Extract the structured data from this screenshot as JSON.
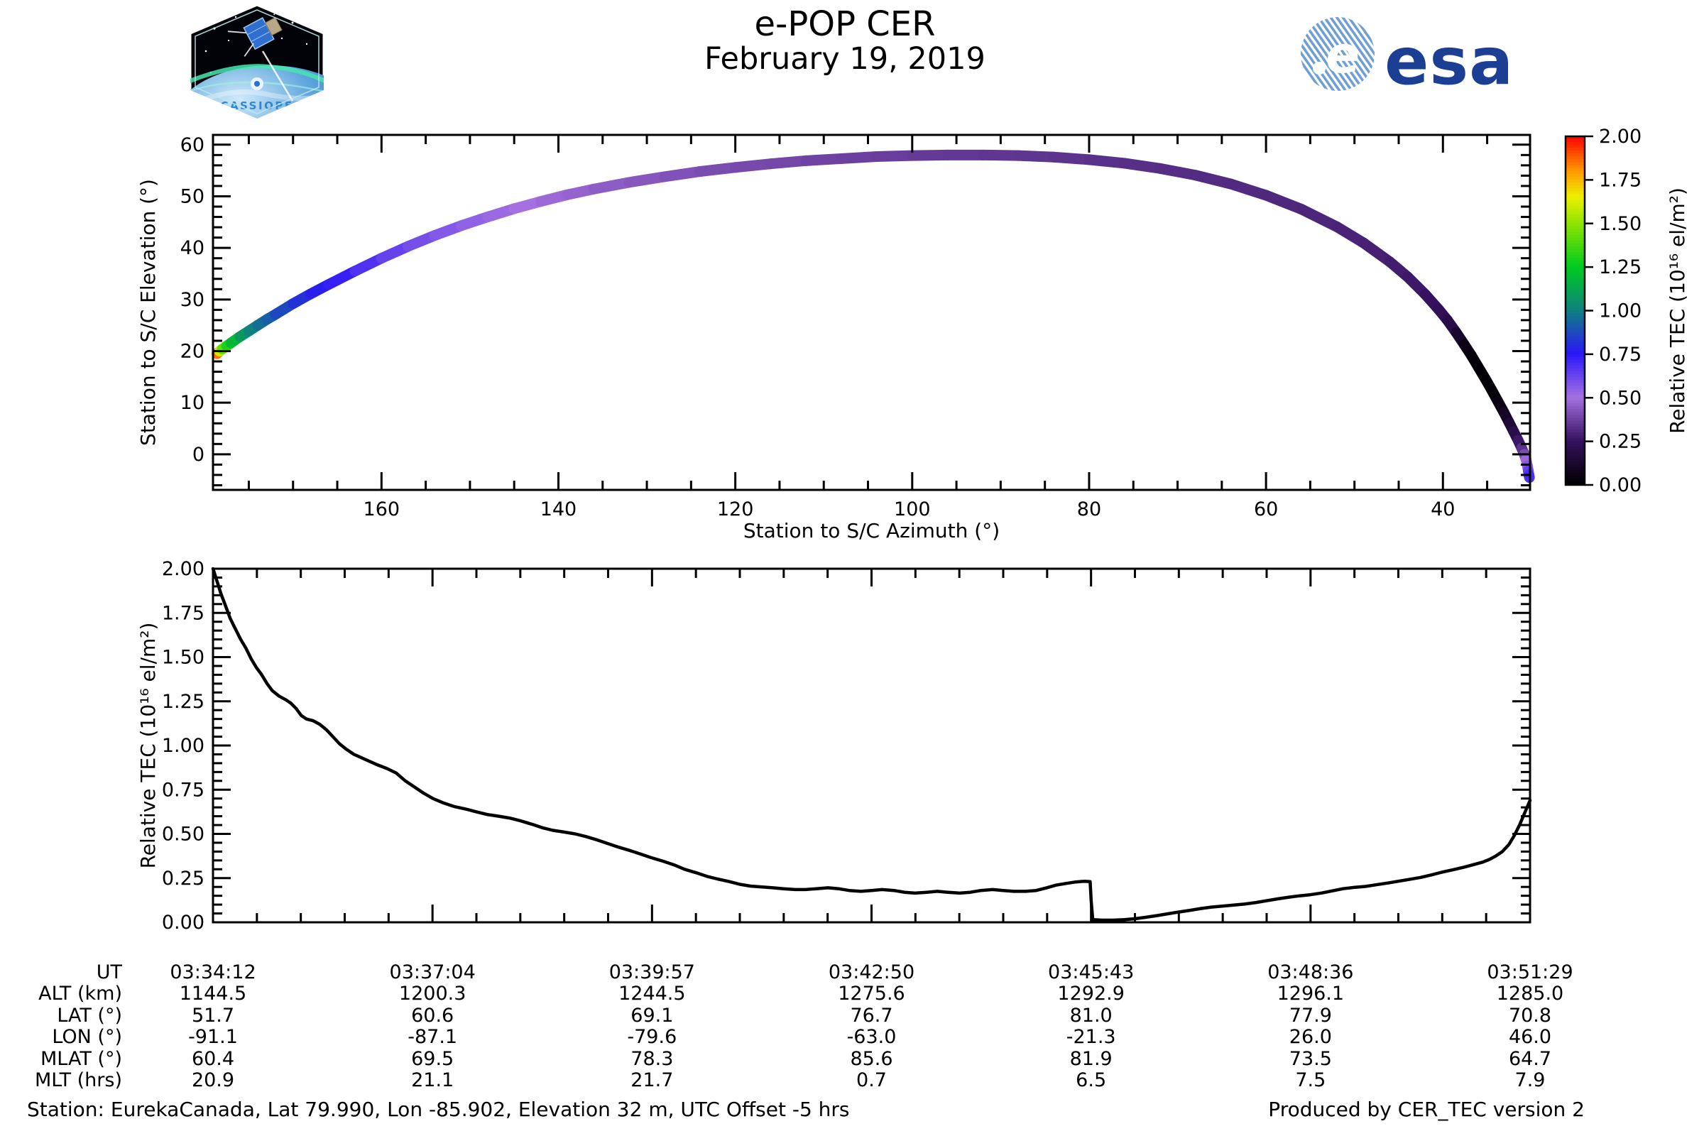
{
  "header": {
    "title": "e-POP CER",
    "date": "February 19, 2019",
    "cassiope_label": "CASSIOPE",
    "esa_wordmark": "esa",
    "esa_e": "e"
  },
  "footer": {
    "station": "Station: EurekaCanada, Lat 79.990, Lon -85.902, Elevation 32 m, UTC Offset -5 hrs",
    "produced": "Produced by CER_TEC version 2"
  },
  "colors": {
    "esa_blue": "#1c3f94",
    "esa_ball_stripe": "#6f9fd2",
    "cassiope_text": "#2f86d6",
    "line": "#000000",
    "background": "#ffffff"
  },
  "chart_data": [
    {
      "id": "elevation-vs-azimuth",
      "type": "line",
      "title": "",
      "xlabel": "Station to S/C Azimuth (°)",
      "ylabel": "Station to S/C Elevation (°)",
      "xlim": [
        179.05,
        30.15
      ],
      "ylim": [
        -6.9,
        61.9
      ],
      "xticks": [
        160,
        140,
        120,
        100,
        80,
        60,
        40
      ],
      "xminor_step": 5,
      "yticks": [
        0,
        10,
        20,
        30,
        40,
        50,
        60
      ],
      "yminor_step": 2,
      "grid": false,
      "legend": "none",
      "colorbar": {
        "label": "Relative TEC (10¹⁶ el/m²)",
        "tick_labels": [
          "2.00",
          "1.75",
          "1.50",
          "1.25",
          "1.00",
          "0.75",
          "0.50",
          "0.25",
          "0.00"
        ],
        "vmin": 0.0,
        "vmax": 2.0
      },
      "colormap_stops": [
        [
          0.0,
          "#000000"
        ],
        [
          0.25,
          "#35115f"
        ],
        [
          0.5,
          "#a571e1"
        ],
        [
          0.75,
          "#2a17f7"
        ],
        [
          1.0,
          "#0e8080"
        ],
        [
          1.25,
          "#00cc1e"
        ],
        [
          1.5,
          "#90e400"
        ],
        [
          1.65,
          "#eef000"
        ],
        [
          1.8,
          "#ff9800"
        ],
        [
          2.0,
          "#fb0000"
        ]
      ],
      "track_note": "satellite pass colored by relative TEC: [azimuth_deg, elevation_deg, tec]",
      "track": [
        [
          178.6,
          19.5,
          2.0
        ],
        [
          178.3,
          20.0,
          1.7
        ],
        [
          178.0,
          20.4,
          1.5
        ],
        [
          177.5,
          21.0,
          1.35
        ],
        [
          177.0,
          21.6,
          1.25
        ],
        [
          176.0,
          22.8,
          1.12
        ],
        [
          175.0,
          23.9,
          1.04
        ],
        [
          174.0,
          25.0,
          0.98
        ],
        [
          173.0,
          26.1,
          0.94
        ],
        [
          172.0,
          27.1,
          0.9
        ],
        [
          170.0,
          29.2,
          0.84
        ],
        [
          168.0,
          31.1,
          0.79
        ],
        [
          166.0,
          32.9,
          0.75
        ],
        [
          163.0,
          35.5,
          0.7
        ],
        [
          160.0,
          38.0,
          0.65
        ],
        [
          157.0,
          40.3,
          0.61
        ],
        [
          154.0,
          42.4,
          0.58
        ],
        [
          151.0,
          44.3,
          0.555
        ],
        [
          148.0,
          46.0,
          0.53
        ],
        [
          145.0,
          47.6,
          0.51
        ],
        [
          142.0,
          49.0,
          0.49
        ],
        [
          139.0,
          50.3,
          0.47
        ],
        [
          136.0,
          51.4,
          0.455
        ],
        [
          132.0,
          52.7,
          0.44
        ],
        [
          128.0,
          53.8,
          0.425
        ],
        [
          124.0,
          54.8,
          0.41
        ],
        [
          120.0,
          55.6,
          0.4
        ],
        [
          116.0,
          56.3,
          0.39
        ],
        [
          112.0,
          56.9,
          0.385
        ],
        [
          108.0,
          57.3,
          0.375
        ],
        [
          104.0,
          57.7,
          0.37
        ],
        [
          100.0,
          57.9,
          0.36
        ],
        [
          96.0,
          58.0,
          0.355
        ],
        [
          92.0,
          58.0,
          0.35
        ],
        [
          88.0,
          57.9,
          0.345
        ],
        [
          84.0,
          57.6,
          0.34
        ],
        [
          80.0,
          57.1,
          0.335
        ],
        [
          76.0,
          56.4,
          0.33
        ],
        [
          72.0,
          55.4,
          0.325
        ],
        [
          68.0,
          54.1,
          0.32
        ],
        [
          64.0,
          52.4,
          0.315
        ],
        [
          60.0,
          50.2,
          0.31
        ],
        [
          56.0,
          47.5,
          0.305
        ],
        [
          52.0,
          44.1,
          0.3
        ],
        [
          49.0,
          41.0,
          0.295
        ],
        [
          46.0,
          37.3,
          0.285
        ],
        [
          44.0,
          34.4,
          0.275
        ],
        [
          42.0,
          31.0,
          0.26
        ],
        [
          40.5,
          28.1,
          0.24
        ],
        [
          39.5,
          26.0,
          0.22
        ],
        [
          38.5,
          23.6,
          0.16
        ],
        [
          37.6,
          21.3,
          0.08
        ],
        [
          36.8,
          19.2,
          0.03
        ],
        [
          36.0,
          16.9,
          0.015
        ],
        [
          35.2,
          14.6,
          0.01
        ],
        [
          34.5,
          12.5,
          0.015
        ],
        [
          33.8,
          10.3,
          0.03
        ],
        [
          33.1,
          8.1,
          0.07
        ],
        [
          32.5,
          6.1,
          0.12
        ],
        [
          32.0,
          4.4,
          0.17
        ],
        [
          31.5,
          2.7,
          0.23
        ],
        [
          31.1,
          1.2,
          0.3
        ],
        [
          30.8,
          0.0,
          0.37
        ],
        [
          30.6,
          -1.0,
          0.44
        ],
        [
          30.45,
          -2.2,
          0.52
        ],
        [
          30.35,
          -3.2,
          0.6
        ],
        [
          30.28,
          -4.0,
          0.66
        ],
        [
          30.22,
          -4.5,
          0.7
        ]
      ]
    },
    {
      "id": "tec-timeseries",
      "type": "line",
      "title": "",
      "xlabel": "",
      "ylabel": "Relative TEC (10¹⁶ el/m²)",
      "ylim": [
        0.0,
        2.0
      ],
      "ytick_labels": [
        "0.00",
        "0.25",
        "0.50",
        "0.75",
        "1.00",
        "1.25",
        "1.50",
        "1.75",
        "2.00"
      ],
      "yminor_per_major": 5,
      "xminor_per_major": 5,
      "grid": false,
      "x_axis_table": {
        "row_labels": [
          "UT",
          "ALT (km)",
          "LAT (°)",
          "LON (°)",
          "MLAT (°)",
          "MLT (hrs)"
        ],
        "columns": [
          [
            "03:34:12",
            "1144.5",
            "51.7",
            "-91.1",
            "60.4",
            "20.9"
          ],
          [
            "03:37:04",
            "1200.3",
            "60.6",
            "-87.1",
            "69.5",
            "21.1"
          ],
          [
            "03:39:57",
            "1244.5",
            "69.1",
            "-79.6",
            "78.3",
            "21.7"
          ],
          [
            "03:42:50",
            "1275.6",
            "76.7",
            "-63.0",
            "85.6",
            "0.7"
          ],
          [
            "03:45:43",
            "1292.9",
            "81.0",
            "-21.3",
            "81.9",
            "6.5"
          ],
          [
            "03:48:36",
            "1296.1",
            "77.9",
            "26.0",
            "73.5",
            "7.5"
          ],
          [
            "03:51:29",
            "1285.0",
            "70.8",
            "46.0",
            "64.7",
            "7.9"
          ]
        ]
      },
      "series": [
        {
          "name": "Relative TEC",
          "points_note": "[fraction of time axis 03:34:12→03:51:29, TEC value]",
          "points": [
            [
              0.0,
              2.0
            ],
            [
              0.003,
              1.93
            ],
            [
              0.006,
              1.86
            ],
            [
              0.01,
              1.78
            ],
            [
              0.013,
              1.72
            ],
            [
              0.017,
              1.66
            ],
            [
              0.021,
              1.6
            ],
            [
              0.025,
              1.55
            ],
            [
              0.029,
              1.49
            ],
            [
              0.033,
              1.44
            ],
            [
              0.037,
              1.4
            ],
            [
              0.041,
              1.35
            ],
            [
              0.045,
              1.31
            ],
            [
              0.05,
              1.28
            ],
            [
              0.055,
              1.26
            ],
            [
              0.059,
              1.24
            ],
            [
              0.063,
              1.21
            ],
            [
              0.067,
              1.17
            ],
            [
              0.071,
              1.15
            ],
            [
              0.076,
              1.14
            ],
            [
              0.081,
              1.12
            ],
            [
              0.086,
              1.09
            ],
            [
              0.091,
              1.05
            ],
            [
              0.096,
              1.01
            ],
            [
              0.101,
              0.98
            ],
            [
              0.107,
              0.95
            ],
            [
              0.113,
              0.93
            ],
            [
              0.119,
              0.91
            ],
            [
              0.125,
              0.89
            ],
            [
              0.132,
              0.87
            ],
            [
              0.139,
              0.845
            ],
            [
              0.146,
              0.8
            ],
            [
              0.153,
              0.765
            ],
            [
              0.16,
              0.73
            ],
            [
              0.167,
              0.7
            ],
            [
              0.175,
              0.675
            ],
            [
              0.183,
              0.655
            ],
            [
              0.192,
              0.64
            ],
            [
              0.2,
              0.625
            ],
            [
              0.208,
              0.61
            ],
            [
              0.217,
              0.6
            ],
            [
              0.225,
              0.59
            ],
            [
              0.233,
              0.575
            ],
            [
              0.242,
              0.555
            ],
            [
              0.25,
              0.535
            ],
            [
              0.258,
              0.52
            ],
            [
              0.267,
              0.51
            ],
            [
              0.275,
              0.5
            ],
            [
              0.283,
              0.485
            ],
            [
              0.292,
              0.465
            ],
            [
              0.3,
              0.445
            ],
            [
              0.308,
              0.425
            ],
            [
              0.317,
              0.405
            ],
            [
              0.325,
              0.385
            ],
            [
              0.333,
              0.365
            ],
            [
              0.342,
              0.345
            ],
            [
              0.35,
              0.325
            ],
            [
              0.358,
              0.3
            ],
            [
              0.367,
              0.28
            ],
            [
              0.375,
              0.26
            ],
            [
              0.383,
              0.245
            ],
            [
              0.392,
              0.23
            ],
            [
              0.4,
              0.215
            ],
            [
              0.408,
              0.205
            ],
            [
              0.417,
              0.2
            ],
            [
              0.425,
              0.195
            ],
            [
              0.433,
              0.19
            ],
            [
              0.442,
              0.185
            ],
            [
              0.45,
              0.185
            ],
            [
              0.458,
              0.19
            ],
            [
              0.467,
              0.195
            ],
            [
              0.475,
              0.19
            ],
            [
              0.483,
              0.18
            ],
            [
              0.492,
              0.175
            ],
            [
              0.5,
              0.18
            ],
            [
              0.508,
              0.185
            ],
            [
              0.517,
              0.18
            ],
            [
              0.525,
              0.17
            ],
            [
              0.533,
              0.165
            ],
            [
              0.542,
              0.17
            ],
            [
              0.55,
              0.175
            ],
            [
              0.558,
              0.17
            ],
            [
              0.567,
              0.165
            ],
            [
              0.575,
              0.17
            ],
            [
              0.583,
              0.18
            ],
            [
              0.592,
              0.185
            ],
            [
              0.6,
              0.18
            ],
            [
              0.608,
              0.175
            ],
            [
              0.617,
              0.175
            ],
            [
              0.625,
              0.18
            ],
            [
              0.633,
              0.195
            ],
            [
              0.64,
              0.21
            ],
            [
              0.648,
              0.22
            ],
            [
              0.655,
              0.228
            ],
            [
              0.662,
              0.232
            ],
            [
              0.666,
              0.23
            ],
            [
              0.6668,
              0.12
            ],
            [
              0.668,
              0.015
            ],
            [
              0.675,
              0.012
            ],
            [
              0.683,
              0.012
            ],
            [
              0.692,
              0.015
            ],
            [
              0.7,
              0.02
            ],
            [
              0.708,
              0.028
            ],
            [
              0.717,
              0.038
            ],
            [
              0.725,
              0.048
            ],
            [
              0.733,
              0.058
            ],
            [
              0.742,
              0.068
            ],
            [
              0.75,
              0.078
            ],
            [
              0.758,
              0.086
            ],
            [
              0.767,
              0.092
            ],
            [
              0.775,
              0.097
            ],
            [
              0.783,
              0.103
            ],
            [
              0.792,
              0.112
            ],
            [
              0.8,
              0.122
            ],
            [
              0.808,
              0.132
            ],
            [
              0.817,
              0.142
            ],
            [
              0.825,
              0.15
            ],
            [
              0.833,
              0.156
            ],
            [
              0.842,
              0.166
            ],
            [
              0.85,
              0.178
            ],
            [
              0.858,
              0.19
            ],
            [
              0.867,
              0.198
            ],
            [
              0.875,
              0.203
            ],
            [
              0.883,
              0.212
            ],
            [
              0.892,
              0.222
            ],
            [
              0.9,
              0.232
            ],
            [
              0.908,
              0.242
            ],
            [
              0.917,
              0.254
            ],
            [
              0.925,
              0.268
            ],
            [
              0.933,
              0.283
            ],
            [
              0.942,
              0.298
            ],
            [
              0.95,
              0.312
            ],
            [
              0.958,
              0.328
            ],
            [
              0.964,
              0.34
            ],
            [
              0.969,
              0.355
            ],
            [
              0.974,
              0.375
            ],
            [
              0.979,
              0.4
            ],
            [
              0.984,
              0.44
            ],
            [
              0.988,
              0.49
            ],
            [
              0.992,
              0.55
            ],
            [
              0.996,
              0.62
            ],
            [
              1.0,
              0.69
            ]
          ]
        }
      ]
    }
  ]
}
